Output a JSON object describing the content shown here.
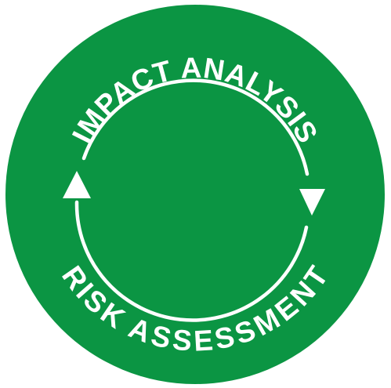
{
  "badge": {
    "top_label": "IMPACT ANALYSIS",
    "bottom_label": "RISK ASSESSMENT"
  },
  "colors": {
    "fill": "#0b9543",
    "foreground": "#ffffff",
    "background": "#ffffff"
  },
  "icons": {
    "cycle": "cycle-arrows-icon"
  }
}
